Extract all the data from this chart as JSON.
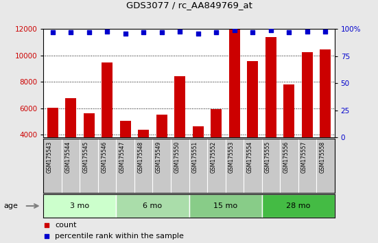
{
  "title": "GDS3077 / rc_AA849769_at",
  "samples": [
    "GSM175543",
    "GSM175544",
    "GSM175545",
    "GSM175546",
    "GSM175547",
    "GSM175548",
    "GSM175549",
    "GSM175550",
    "GSM175551",
    "GSM175552",
    "GSM175553",
    "GSM175554",
    "GSM175555",
    "GSM175556",
    "GSM175557",
    "GSM175558"
  ],
  "counts": [
    6020,
    6750,
    5620,
    9480,
    5060,
    4380,
    5500,
    8450,
    4650,
    5920,
    11950,
    9580,
    11400,
    7820,
    10250,
    10480
  ],
  "percentile_ranks": [
    97,
    97,
    97,
    98,
    96,
    97,
    97,
    98,
    96,
    97,
    99,
    97,
    99,
    97,
    98,
    98
  ],
  "groups": [
    {
      "label": "3 mo",
      "start": 0,
      "end": 4,
      "color": "#ccffcc"
    },
    {
      "label": "6 mo",
      "start": 4,
      "end": 8,
      "color": "#aaeebb"
    },
    {
      "label": "15 mo",
      "start": 8,
      "end": 12,
      "color": "#88dd99"
    },
    {
      "label": "28 mo",
      "start": 12,
      "end": 16,
      "color": "#44cc55"
    }
  ],
  "group_colors": [
    "#ccffcc",
    "#aaeebb",
    "#88dd99",
    "#44cc55"
  ],
  "ylim_left": [
    3800,
    12000
  ],
  "ylim_right": [
    0,
    100
  ],
  "yticks_left": [
    4000,
    6000,
    8000,
    10000,
    12000
  ],
  "yticks_right": [
    0,
    25,
    50,
    75,
    100
  ],
  "bar_color": "#cc0000",
  "dot_color": "#0000cc",
  "background_color": "#e8e8e8",
  "plot_bg": "#ffffff",
  "left_tick_color": "#cc0000",
  "right_tick_color": "#0000cc",
  "legend_count_color": "#cc0000",
  "legend_pct_color": "#0000cc",
  "label_bg": "#c8c8c8",
  "grid_color": "#000000"
}
